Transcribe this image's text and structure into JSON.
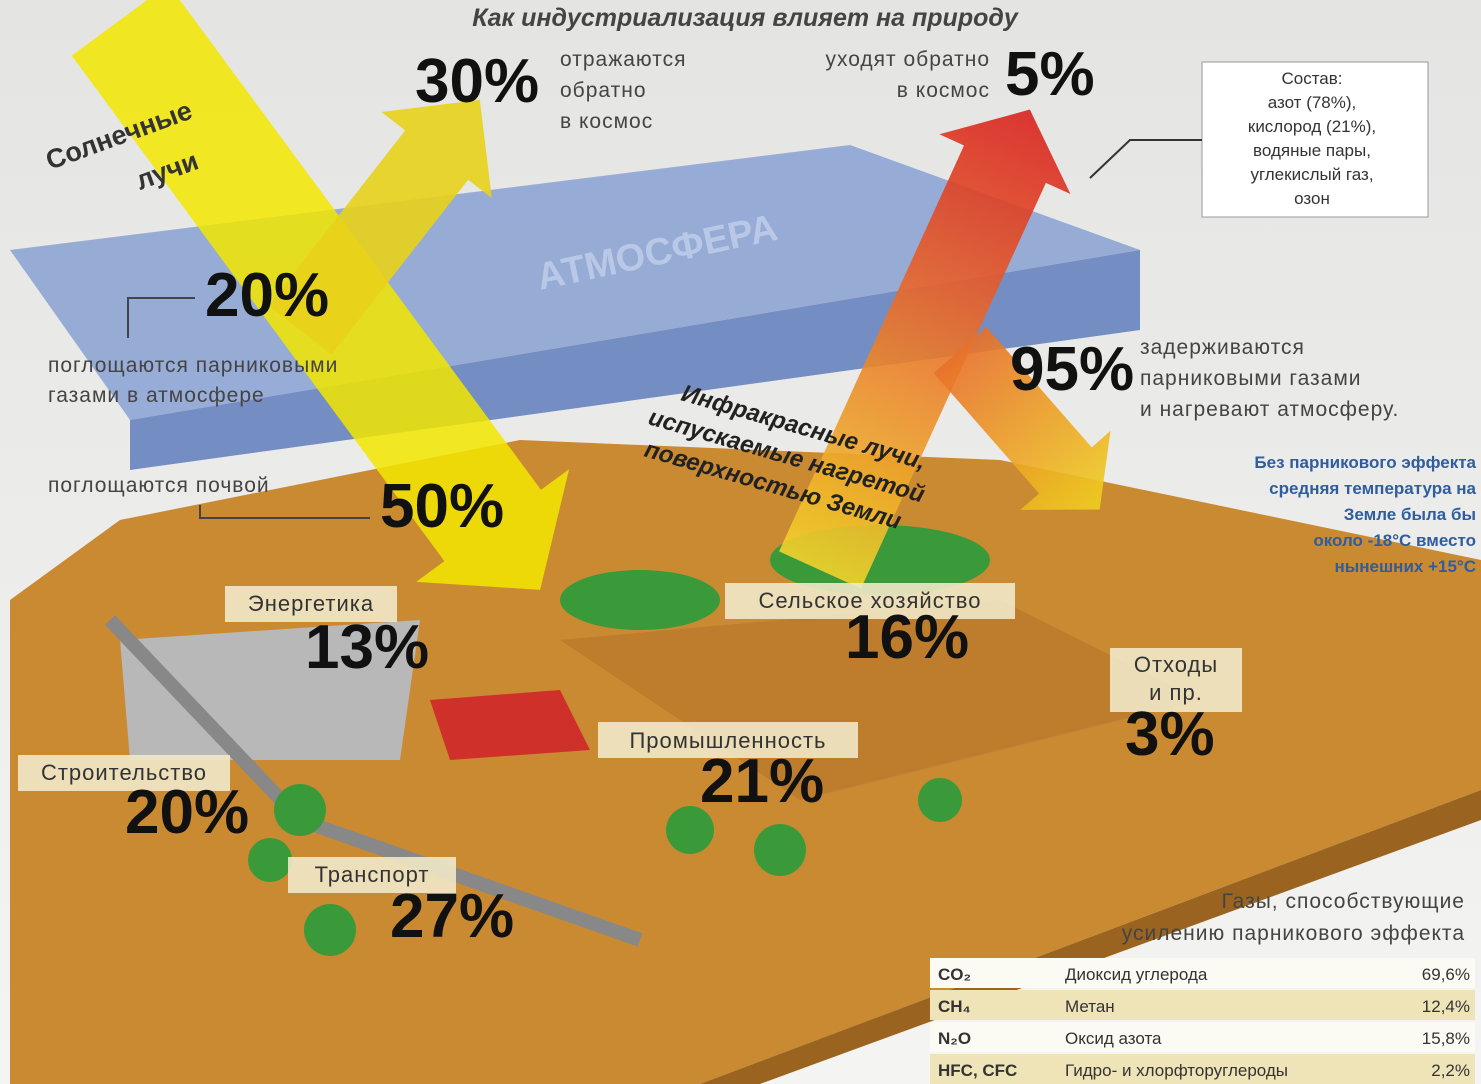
{
  "title": "Как индустриализация влияет на природу",
  "atmosphere": "АТМОСФЕРА",
  "composition": [
    "Состав:",
    "азот (78%),",
    "кислород (21%),",
    "водяные пары,",
    "углекислый газ,",
    "озон"
  ],
  "sun_label": [
    "Солнечные",
    "лучи"
  ],
  "reflected": {
    "percent": "30%",
    "text": [
      "отражаются",
      "обратно",
      "в космос"
    ]
  },
  "absorbed_atmosphere": {
    "percent": "20%",
    "text": [
      "поглощаются парниковыми",
      "газами в атмосфере"
    ]
  },
  "absorbed_soil": {
    "percent": "50%",
    "text": "поглощаются почвой"
  },
  "escape": {
    "percent": "5%",
    "text": [
      "уходят обратно",
      "в космос"
    ]
  },
  "retained": {
    "percent": "95%",
    "text": [
      "задерживаются",
      "парниковыми газами",
      "и нагревают атмосферу."
    ]
  },
  "infrared": [
    "Инфракрасные лучи,",
    "испускаемые нагретой",
    "поверхностью Земли"
  ],
  "note": [
    "Без парникового эффекта",
    "средняя температура на",
    "Земле была бы",
    "около -18°С вместо",
    "нынешних +15°С"
  ],
  "sectors": [
    {
      "name": [
        "Энергетика"
      ],
      "percent": "13%"
    },
    {
      "name": [
        "Сельское хозяйство"
      ],
      "percent": "16%"
    },
    {
      "name": [
        "Отходы",
        "и пр."
      ],
      "percent": "3%"
    },
    {
      "name": [
        "Промышленность"
      ],
      "percent": "21%"
    },
    {
      "name": [
        "Строительство"
      ],
      "percent": "20%"
    },
    {
      "name": [
        "Транспорт"
      ],
      "percent": "27%"
    }
  ],
  "gases": {
    "title": [
      "Газы, способствующие",
      "усилению парникового эффекта"
    ],
    "rows": [
      [
        "CO₂",
        "Диоксид углерода",
        "69,6%"
      ],
      [
        "CH₄",
        "Метан",
        "12,4%"
      ],
      [
        "N₂O",
        "Оксид азота",
        "15,8%"
      ],
      [
        "HFC, CFC",
        "Гидро- и хлорфторуглероды",
        "2,2%"
      ]
    ]
  }
}
